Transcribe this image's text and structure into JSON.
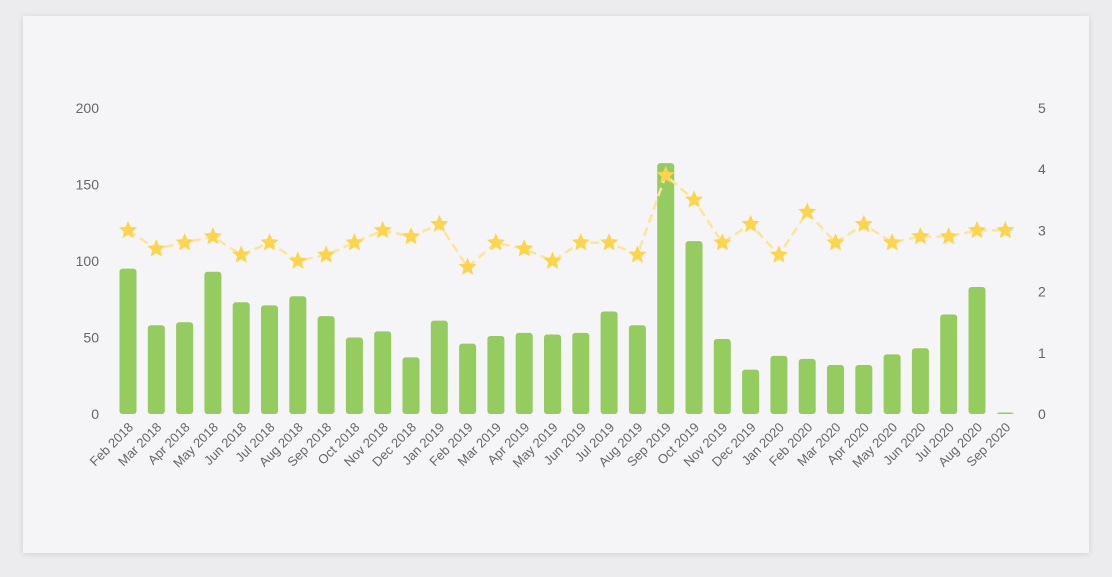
{
  "chart_data": {
    "type": "bar",
    "title": "",
    "xlabel": "",
    "ylabel": "",
    "categories": [
      "Feb 2018",
      "Mar 2018",
      "Apr 2018",
      "May 2018",
      "Jun 2018",
      "Jul 2018",
      "Aug 2018",
      "Sep 2018",
      "Oct 2018",
      "Nov 2018",
      "Dec 2018",
      "Jan 2019",
      "Feb 2019",
      "Mar 2019",
      "Apr 2019",
      "May 2019",
      "Jun 2019",
      "Jul 2019",
      "Aug 2019",
      "Sep 2019",
      "Oct 2019",
      "Nov 2019",
      "Dec 2019",
      "Jan 2020",
      "Feb 2020",
      "Mar 2020",
      "Apr 2020",
      "May 2020",
      "Jun 2020",
      "Jul 2020",
      "Aug 2020",
      "Sep 2020"
    ],
    "series": [
      {
        "type": "bar",
        "axis": "left",
        "color": "#95cc5f",
        "values": [
          95,
          58,
          60,
          93,
          73,
          71,
          77,
          64,
          50,
          54,
          37,
          61,
          46,
          51,
          53,
          52,
          53,
          67,
          58,
          164,
          113,
          49,
          29,
          38,
          36,
          32,
          32,
          39,
          43,
          65,
          83,
          1
        ]
      },
      {
        "type": "line",
        "axis": "right",
        "marker": "star",
        "color": "#fcd54b",
        "line_color": "#fde49a",
        "line_style": "dashed",
        "values": [
          3.0,
          2.7,
          2.8,
          2.9,
          2.6,
          2.8,
          2.5,
          2.6,
          2.8,
          3.0,
          2.9,
          3.1,
          2.4,
          2.8,
          2.7,
          2.5,
          2.8,
          2.8,
          2.6,
          3.9,
          3.5,
          2.8,
          3.1,
          2.6,
          3.3,
          2.8,
          3.1,
          2.8,
          2.9,
          2.9,
          3.0,
          3.0
        ]
      }
    ],
    "y_left": {
      "ticks": [
        0,
        50,
        100,
        150,
        200
      ],
      "ylim": [
        0,
        200
      ]
    },
    "y_right": {
      "ticks": [
        0,
        1,
        2,
        3,
        4,
        5
      ],
      "ylim": [
        0,
        5
      ]
    },
    "grid": false,
    "legend": "none"
  }
}
